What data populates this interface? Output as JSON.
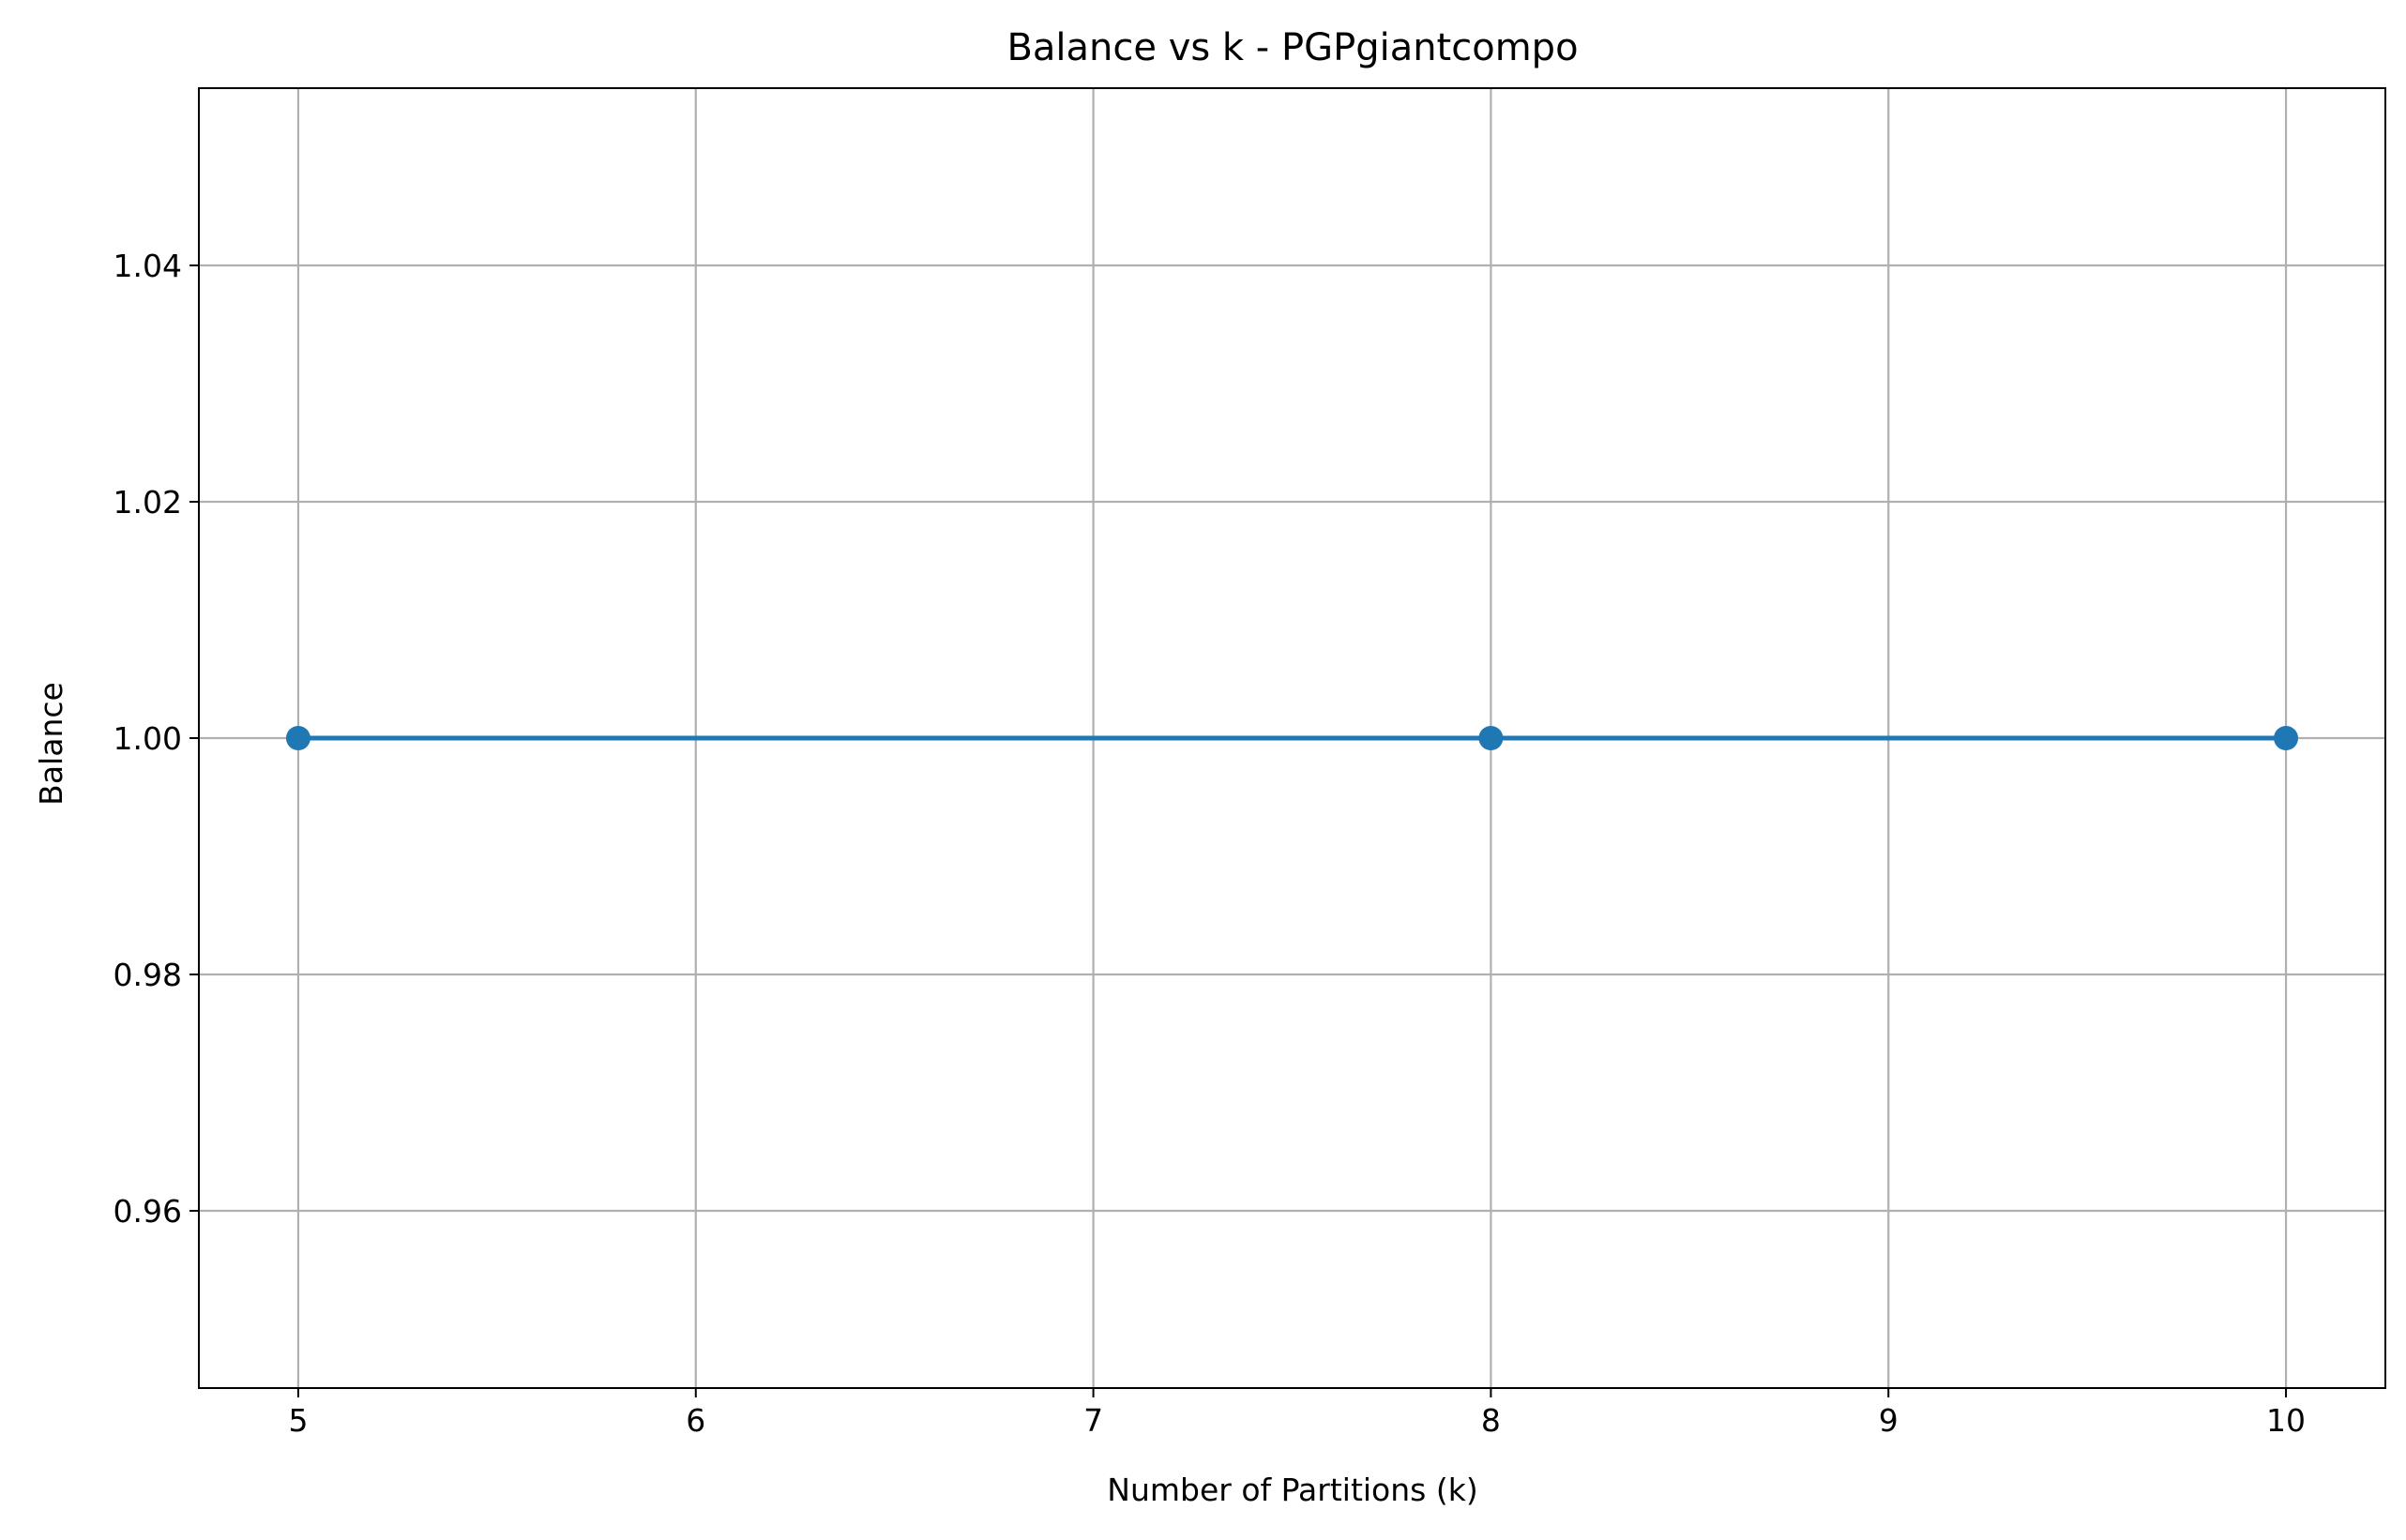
{
  "chart_data": {
    "type": "line",
    "title": "Balance vs k - PGPgiantcompo",
    "xlabel": "Number of Partitions (k)",
    "ylabel": "Balance",
    "x": [
      5,
      8,
      10
    ],
    "series": [
      {
        "values": [
          1.0,
          1.0,
          1.0
        ],
        "color": "#1f77b4",
        "marker": "circle"
      }
    ],
    "xlim": [
      4.75,
      10.25
    ],
    "ylim": [
      0.945,
      1.055
    ],
    "xticks": [
      5,
      6,
      7,
      8,
      9,
      10
    ],
    "xtick_labels": [
      "5",
      "6",
      "7",
      "8",
      "9",
      "10"
    ],
    "yticks": [
      0.96,
      0.98,
      1.0,
      1.02,
      1.04
    ],
    "ytick_labels": [
      "0.96",
      "0.98",
      "1.00",
      "1.02",
      "1.04"
    ],
    "grid": true,
    "colors": {
      "line": "#1f77b4",
      "grid": "#b0b0b0",
      "axes": "#000000",
      "background": "#ffffff"
    }
  }
}
